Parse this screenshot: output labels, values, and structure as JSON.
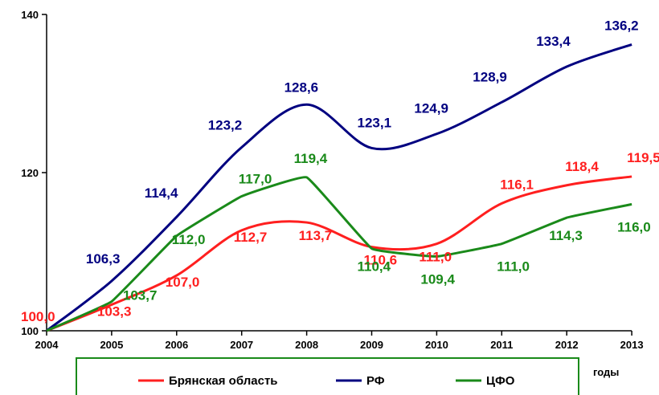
{
  "chart_data": {
    "type": "line",
    "title": "",
    "xlabel": "годы",
    "ylabel": "",
    "x": [
      "2004",
      "2005",
      "2006",
      "2007",
      "2008",
      "2009",
      "2010",
      "2011",
      "2012",
      "2013"
    ],
    "ylim": [
      100,
      140
    ],
    "yticks": [
      "100",
      "120",
      "140"
    ],
    "grid": false,
    "legend_position": "bottom",
    "series": [
      {
        "name": "Брянская область",
        "color": "#ff1f1f",
        "values": [
          100.0,
          103.3,
          107.0,
          112.7,
          113.7,
          110.6,
          111.0,
          116.1,
          118.4,
          119.5
        ],
        "labels": [
          "100,0",
          "103,3",
          "107,0",
          "112,7",
          "113,7",
          "110,6",
          "111,0",
          "116,1",
          "118,4",
          "119,5"
        ]
      },
      {
        "name": "РФ",
        "color": "#000080",
        "values": [
          100.0,
          106.3,
          114.4,
          123.2,
          128.6,
          123.1,
          124.9,
          128.9,
          133.4,
          136.2
        ],
        "labels": [
          "",
          "106,3",
          "114,4",
          "123,2",
          "128,6",
          "123,1",
          "124,9",
          "128,9",
          "133,4",
          "136,2"
        ]
      },
      {
        "name": "ЦФО",
        "color": "#1a8a1a",
        "values": [
          100.0,
          103.7,
          112.0,
          117.0,
          119.4,
          110.4,
          109.4,
          111.0,
          114.3,
          116.0
        ],
        "labels": [
          "",
          "103,7",
          "112,0",
          "117,0",
          "119,4",
          "110,4",
          "109,4",
          "111,0",
          "114,3",
          "116,0"
        ]
      }
    ]
  }
}
